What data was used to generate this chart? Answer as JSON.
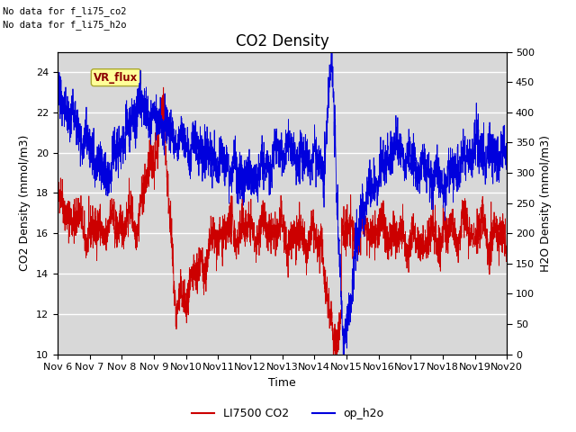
{
  "title": "CO2 Density",
  "xlabel": "Time",
  "ylabel_left": "CO2 Density (mmol/m3)",
  "ylabel_right": "H2O Density (mmol/m3)",
  "ylim_left": [
    10,
    25
  ],
  "ylim_right": [
    0,
    500
  ],
  "yticks_left": [
    10,
    12,
    14,
    16,
    18,
    20,
    22,
    24
  ],
  "yticks_right": [
    0,
    50,
    100,
    150,
    200,
    250,
    300,
    350,
    400,
    450,
    500
  ],
  "color_co2": "#cc0000",
  "color_h2o": "#0000dd",
  "legend_labels": [
    "LI7500 CO2",
    "op_h2o"
  ],
  "no_data_text1": "No data for f_li75_co2",
  "no_data_text2": "No data for f_li75_h2o",
  "vr_flux_label": "VR_flux",
  "background_color": "#ffffff",
  "plot_bg_color": "#d8d8d8",
  "grid_color": "#ffffff",
  "seed": 42,
  "n_points": 3000,
  "title_fontsize": 12,
  "axis_label_fontsize": 9,
  "tick_label_fontsize": 8
}
